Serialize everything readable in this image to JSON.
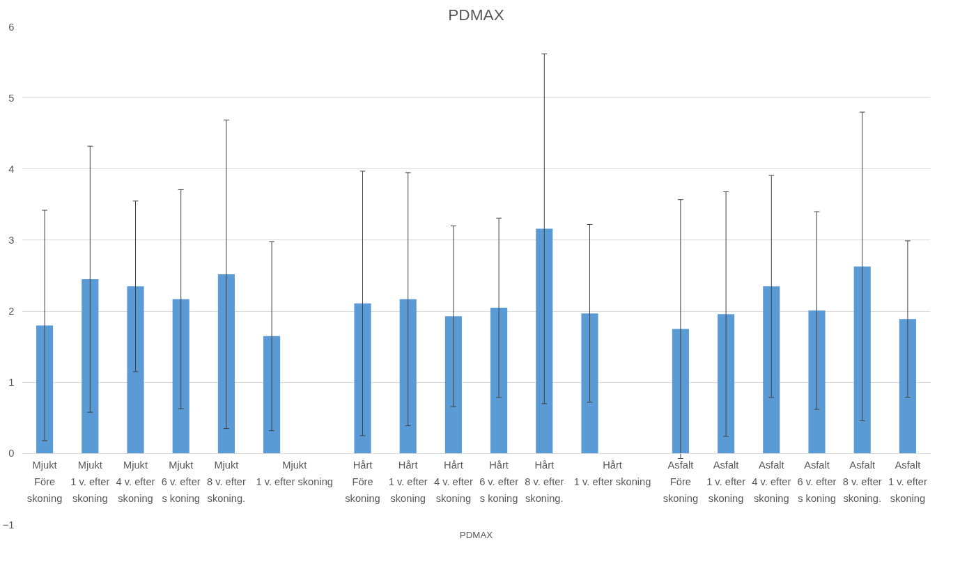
{
  "chart_data": {
    "type": "bar",
    "title": "PDMAX",
    "xlabel": "PDMAX",
    "categories": [
      "Mjukt\nFöre\nskoning",
      "Mjukt\n1 v. efter\nskoning",
      "Mjukt\n4 v. efter\nskoning",
      "Mjukt\n6 v. efter\ns koning",
      "Mjukt\n8 v. efter\nskoning.",
      "Mjukt\n1 v. efter skoning",
      null,
      "Hårt\nFöre\nskoning",
      "Hårt\n1 v. efter\nskoning",
      "Hårt\n4 v. efter\nskoning",
      "Hårt\n6 v. efter\ns koning",
      "Hårt\n8 v. efter\nskoning.",
      "Hårt\n1 v. efter skoning",
      null,
      "Asfalt\nFöre\nskoning",
      "Asfalt\n1 v. efter\nskoning",
      "Asfalt\n4 v. efter\nskoning",
      "Asfalt\n6 v. efter\ns koning",
      "Asfalt\n8 v. efter\nskoning.",
      "Asfalt\n1 v. efter\nskoning"
    ],
    "values": [
      1.8,
      2.45,
      2.35,
      2.17,
      2.52,
      1.65,
      null,
      2.11,
      2.17,
      1.93,
      2.05,
      3.16,
      1.97,
      null,
      1.75,
      1.96,
      2.35,
      2.01,
      2.63,
      1.89
    ],
    "errors": [
      1.62,
      1.87,
      1.2,
      1.54,
      2.17,
      1.33,
      null,
      1.86,
      1.78,
      1.27,
      1.26,
      2.46,
      1.25,
      null,
      1.82,
      1.72,
      1.56,
      1.39,
      2.17,
      1.1
    ],
    "color": "#5b9bd5",
    "ylim": [
      -1,
      6
    ],
    "yticks": [
      -1,
      0,
      1,
      2,
      3,
      4,
      5,
      6
    ],
    "grid": "y"
  }
}
